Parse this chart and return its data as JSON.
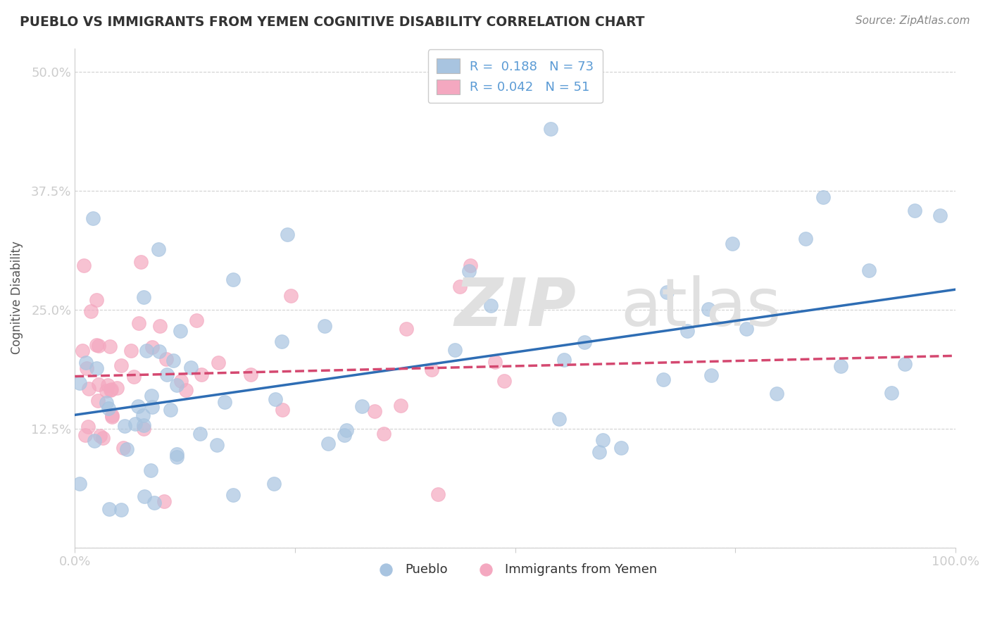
{
  "title": "PUEBLO VS IMMIGRANTS FROM YEMEN COGNITIVE DISABILITY CORRELATION CHART",
  "source": "Source: ZipAtlas.com",
  "ylabel": "Cognitive Disability",
  "xlim": [
    0,
    1
  ],
  "ylim": [
    0,
    0.525
  ],
  "yticks": [
    0,
    0.125,
    0.25,
    0.375,
    0.5
  ],
  "ytick_labels": [
    "",
    "12.5%",
    "25.0%",
    "37.5%",
    "50.0%"
  ],
  "pueblo_R": 0.188,
  "pueblo_N": 73,
  "yemen_R": 0.042,
  "yemen_N": 51,
  "pueblo_color": "#a8c4e0",
  "pueblo_edge_color": "#a8c4e0",
  "pueblo_line_color": "#2e6db4",
  "yemen_color": "#f4a8c0",
  "yemen_edge_color": "#f4a8c0",
  "yemen_line_color": "#d44870",
  "background_color": "#ffffff",
  "grid_color": "#cccccc",
  "tick_color": "#5b9bd5",
  "ylabel_color": "#555555",
  "title_color": "#333333",
  "source_color": "#888888",
  "watermark_color": "#e0e0e0",
  "legend_text_color": "#5b9bd5",
  "legend_border_color": "#cccccc"
}
